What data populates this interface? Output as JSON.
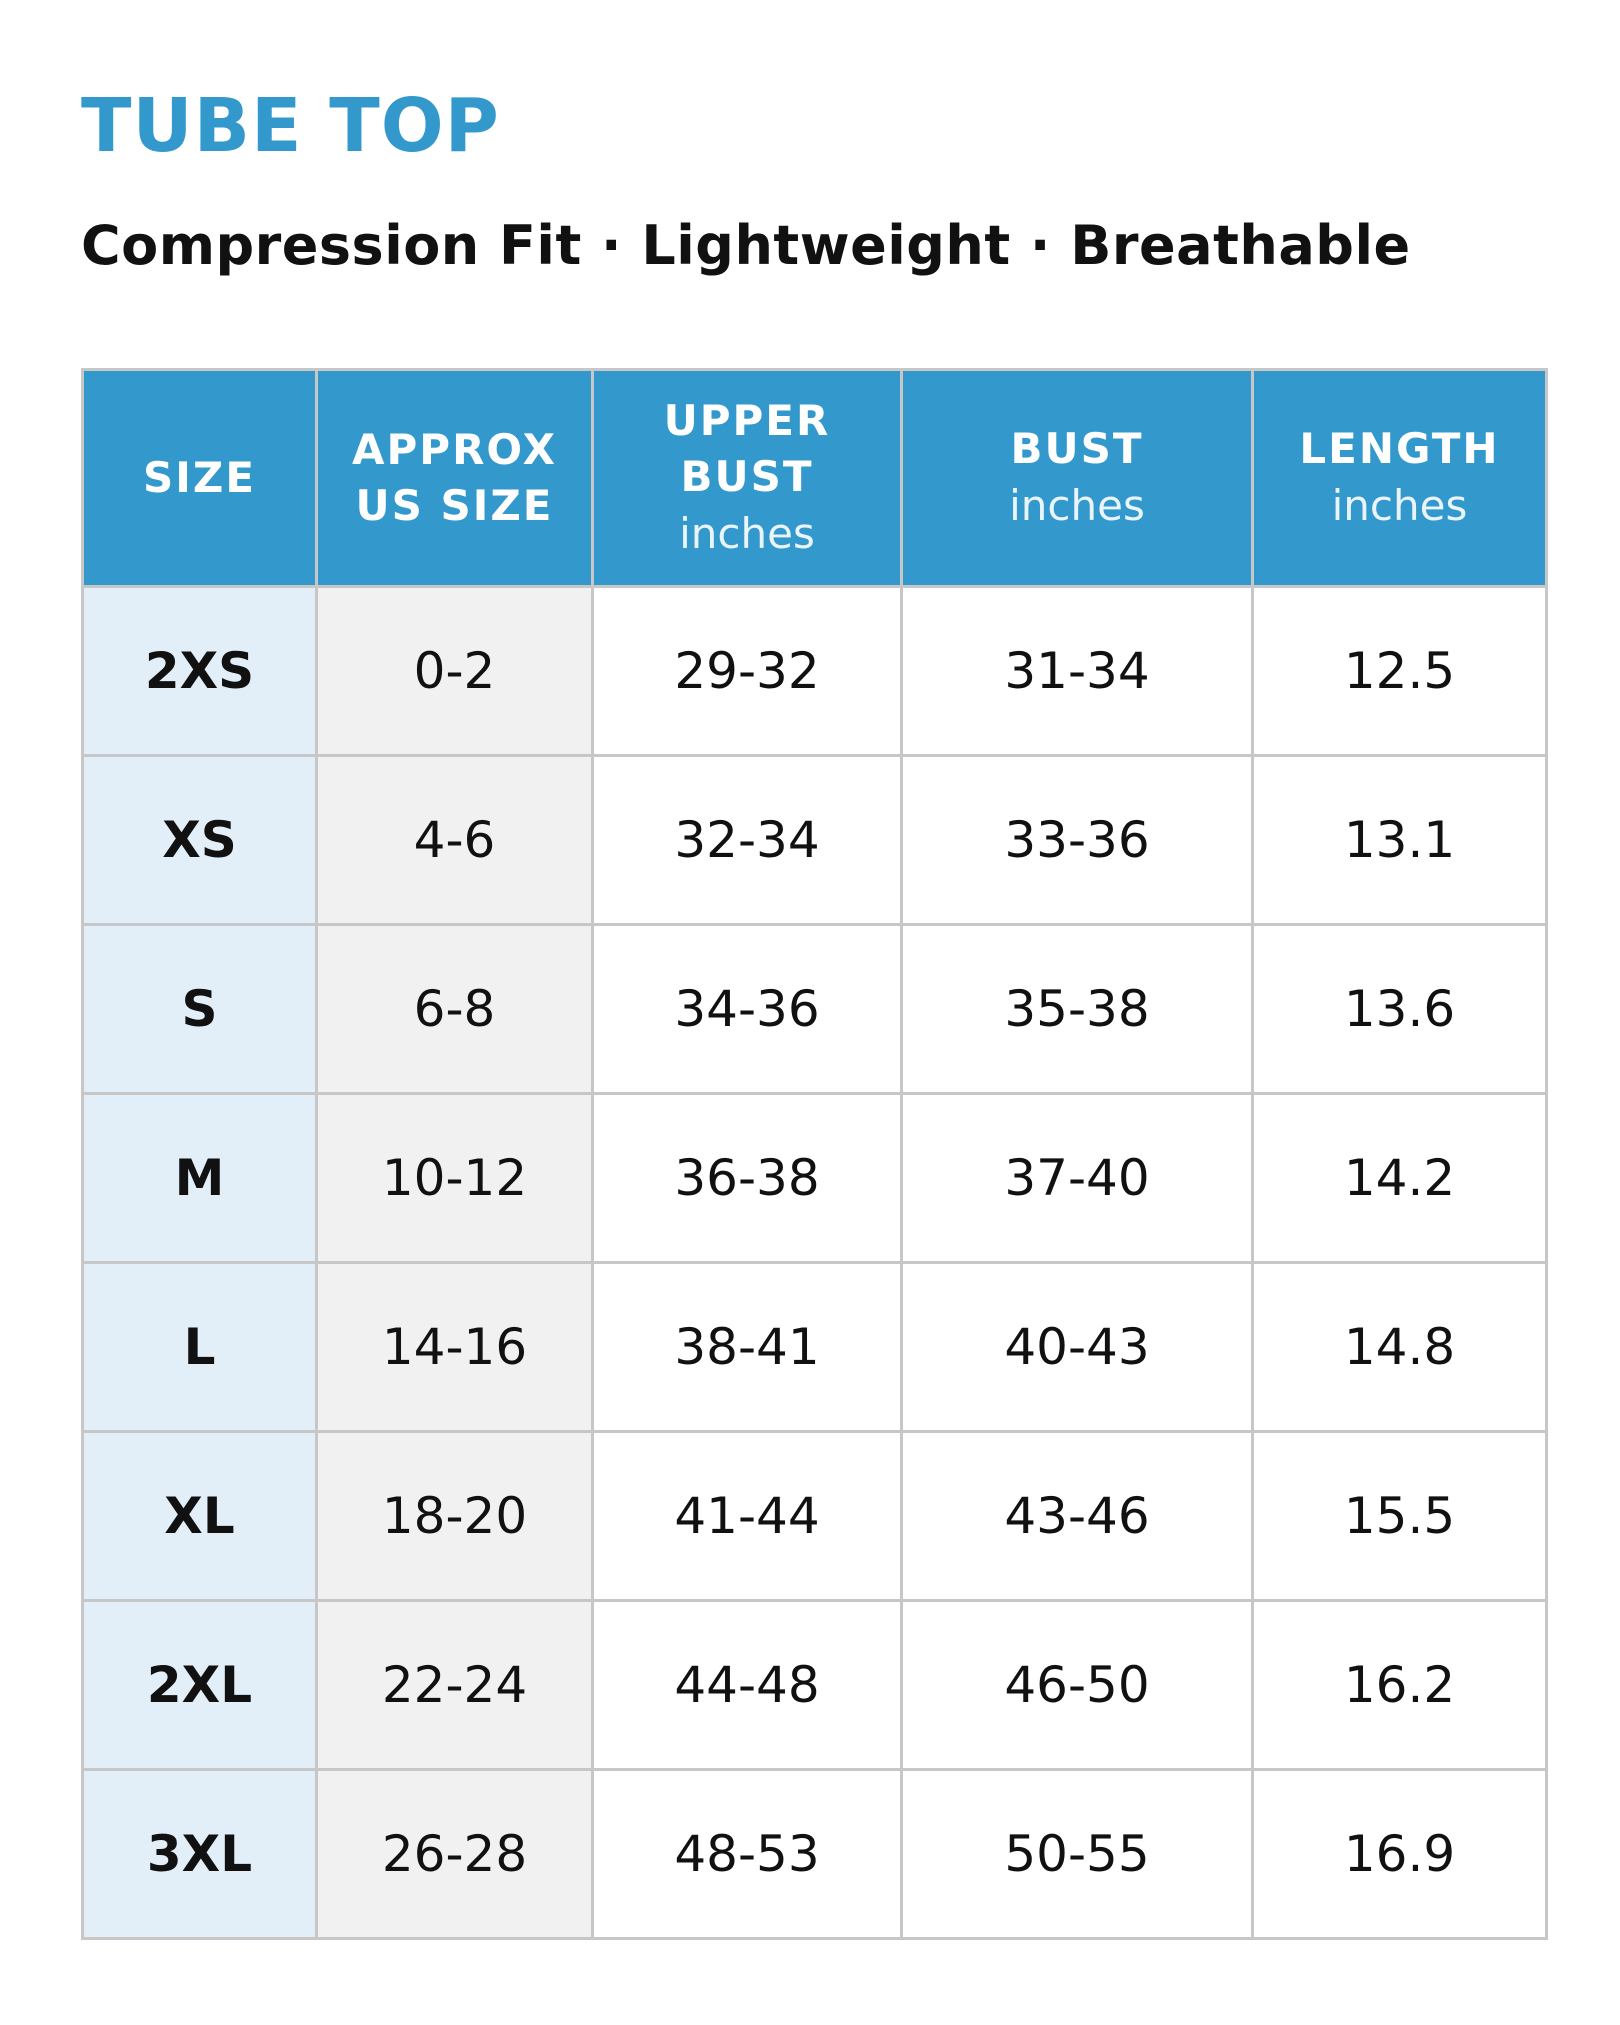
{
  "title": "TUBE TOP",
  "subtitle": "Compression Fit · Lightweight · Breathable",
  "colors": {
    "accent": "#3398cc",
    "size_column_bg": "#e2eef8",
    "us_column_bg": "#f1f1f1",
    "grid": "#c7c7c7"
  },
  "table": {
    "headers": [
      {
        "main": "SIZE",
        "unit": ""
      },
      {
        "main": "APPROX US SIZE",
        "unit": ""
      },
      {
        "main": "UPPER BUST",
        "unit": "inches"
      },
      {
        "main": "BUST",
        "unit": "inches"
      },
      {
        "main": "LENGTH",
        "unit": "inches"
      }
    ],
    "rows": [
      {
        "size": "2XS",
        "us": "0-2",
        "upper_bust": "29-32",
        "bust": "31-34",
        "length": "12.5"
      },
      {
        "size": "XS",
        "us": "4-6",
        "upper_bust": "32-34",
        "bust": "33-36",
        "length": "13.1"
      },
      {
        "size": "S",
        "us": "6-8",
        "upper_bust": "34-36",
        "bust": "35-38",
        "length": "13.6"
      },
      {
        "size": "M",
        "us": "10-12",
        "upper_bust": "36-38",
        "bust": "37-40",
        "length": "14.2"
      },
      {
        "size": "L",
        "us": "14-16",
        "upper_bust": "38-41",
        "bust": "40-43",
        "length": "14.8"
      },
      {
        "size": "XL",
        "us": "18-20",
        "upper_bust": "41-44",
        "bust": "43-46",
        "length": "15.5"
      },
      {
        "size": "2XL",
        "us": "22-24",
        "upper_bust": "44-48",
        "bust": "46-50",
        "length": "16.2"
      },
      {
        "size": "3XL",
        "us": "26-28",
        "upper_bust": "48-53",
        "bust": "50-55",
        "length": "16.9"
      }
    ]
  }
}
